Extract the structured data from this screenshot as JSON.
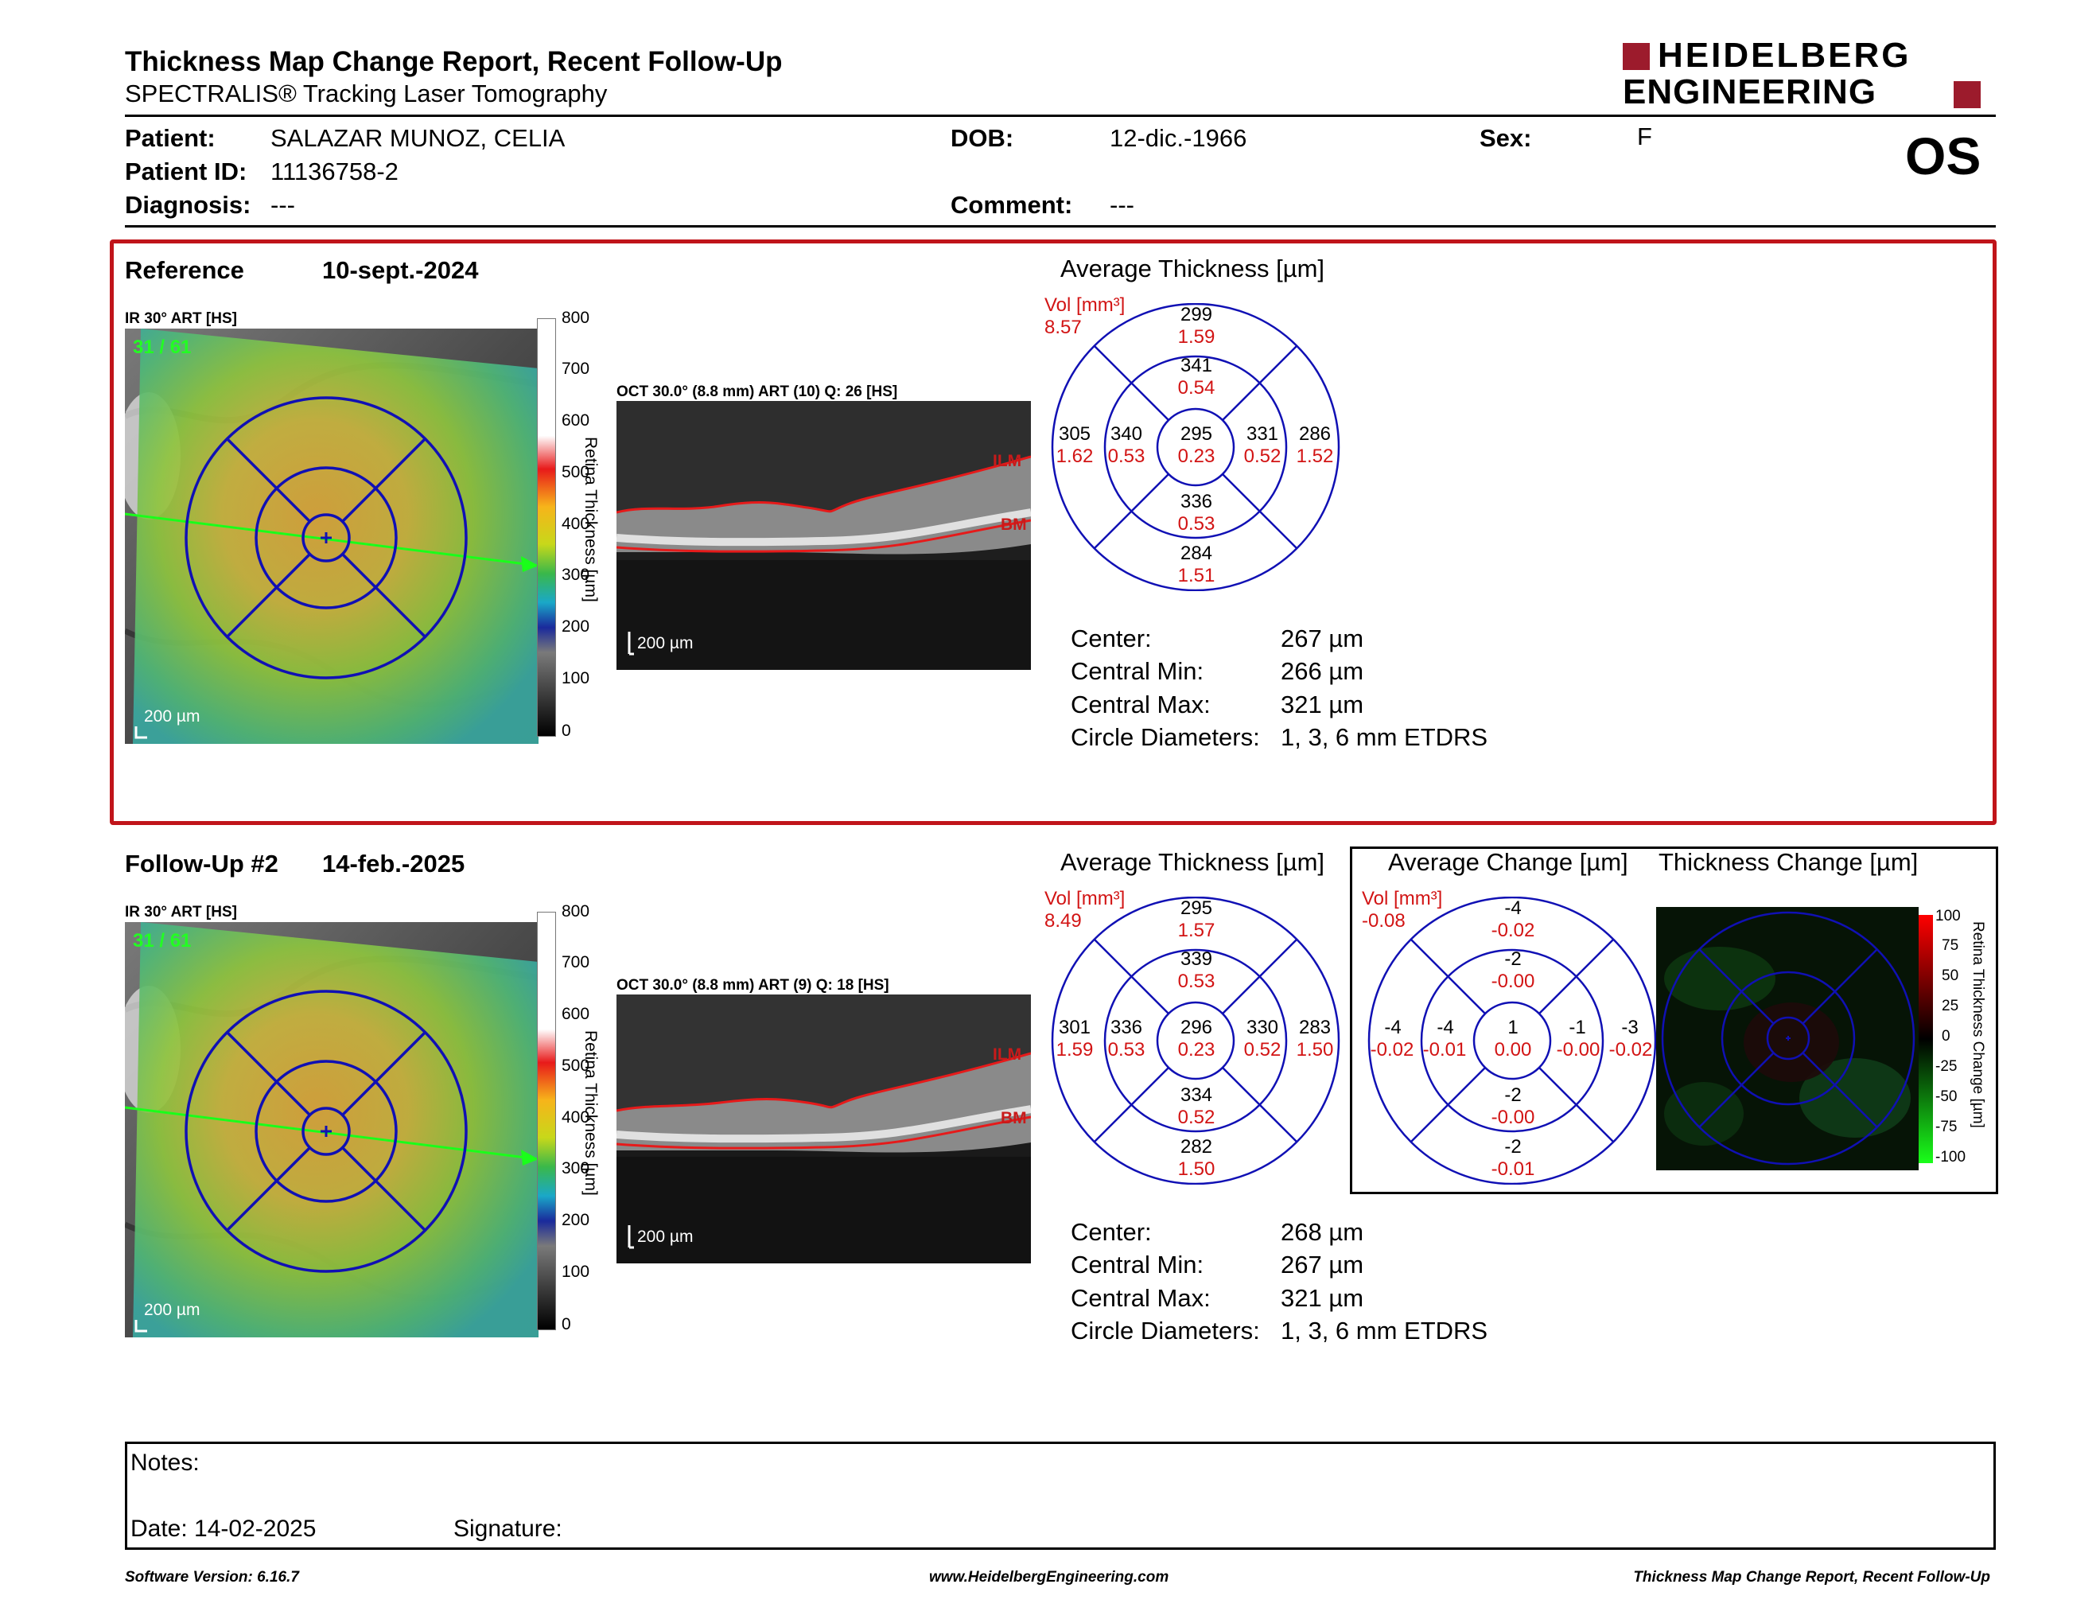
{
  "header": {
    "title": "Thickness Map Change Report, Recent Follow-Up",
    "subtitle": "SPECTRALIS® Tracking Laser Tomography",
    "logo_line1": "HEIDELBERG",
    "logo_line2": "ENGINEERING",
    "eye": "OS"
  },
  "patient": {
    "patient_label": "Patient:",
    "patient_value": "SALAZAR MUNOZ, CELIA",
    "id_label": "Patient ID:",
    "id_value": "11136758-2",
    "diagnosis_label": "Diagnosis:",
    "diagnosis_value": "---",
    "dob_label": "DOB:",
    "dob_value": "12-dic.-1966",
    "comment_label": "Comment:",
    "comment_value": "---",
    "sex_label": "Sex:",
    "sex_value": "F"
  },
  "reference": {
    "label": "Reference",
    "date": "10-sept.-2024",
    "ir_caption": "IR 30° ART [HS]",
    "ir_overlay": "31 / 61",
    "oct_caption": "OCT 30.0° (8.8 mm) ART (10) Q: 26 [HS]",
    "scale_bar": "200 µm",
    "avg_title": "Average Thickness [µm]",
    "vol_label": "Vol [mm³]",
    "vol_value": "8.57",
    "grid": {
      "outer_top": "299",
      "outer_top_v": "1.59",
      "inner_top": "341",
      "inner_top_v": "0.54",
      "outer_left": "305",
      "outer_left_v": "1.62",
      "inner_left": "340",
      "inner_left_v": "0.53",
      "center": "295",
      "center_v": "0.23",
      "inner_right": "331",
      "inner_right_v": "0.52",
      "outer_right": "286",
      "outer_right_v": "1.52",
      "inner_bottom": "336",
      "inner_bottom_v": "0.53",
      "outer_bottom": "284",
      "outer_bottom_v": "1.51"
    },
    "stats": [
      {
        "label": "Center:",
        "value": "267 µm"
      },
      {
        "label": "Central Min:",
        "value": "266 µm"
      },
      {
        "label": "Central Max:",
        "value": "321 µm"
      },
      {
        "label": "Circle Diameters:",
        "value": "1, 3, 6 mm ETDRS"
      }
    ]
  },
  "followup": {
    "label": "Follow-Up #2",
    "date": "14-feb.-2025",
    "ir_caption": "IR 30° ART [HS]",
    "ir_overlay": "31 / 61",
    "oct_caption": "OCT 30.0° (8.8 mm) ART (9) Q: 18 [HS]",
    "scale_bar": "200 µm",
    "avg_title": "Average Thickness [µm]",
    "vol_label": "Vol [mm³]",
    "vol_value": "8.49",
    "grid": {
      "outer_top": "295",
      "outer_top_v": "1.57",
      "inner_top": "339",
      "inner_top_v": "0.53",
      "outer_left": "301",
      "outer_left_v": "1.59",
      "inner_left": "336",
      "inner_left_v": "0.53",
      "center": "296",
      "center_v": "0.23",
      "inner_right": "330",
      "inner_right_v": "0.52",
      "outer_right": "283",
      "outer_right_v": "1.50",
      "inner_bottom": "334",
      "inner_bottom_v": "0.52",
      "outer_bottom": "282",
      "outer_bottom_v": "1.50"
    },
    "stats": [
      {
        "label": "Center:",
        "value": "268 µm"
      },
      {
        "label": "Central Min:",
        "value": "267 µm"
      },
      {
        "label": "Central Max:",
        "value": "321 µm"
      },
      {
        "label": "Circle Diameters:",
        "value": "1, 3, 6 mm ETDRS"
      }
    ],
    "change_title": "Average Change [µm]",
    "change_vol_label": "Vol [mm³]",
    "change_vol_value": "-0.08",
    "change_grid": {
      "outer_top": "-4",
      "outer_top_v": "-0.02",
      "inner_top": "-2",
      "inner_top_v": "-0.00",
      "outer_left": "-4",
      "outer_left_v": "-0.02",
      "inner_left": "-4",
      "inner_left_v": "-0.01",
      "center": "1",
      "center_v": "0.00",
      "inner_right": "-1",
      "inner_right_v": "-0.00",
      "outer_right": "-3",
      "outer_right_v": "-0.02",
      "inner_bottom": "-2",
      "inner_bottom_v": "-0.00",
      "outer_bottom": "-2",
      "outer_bottom_v": "-0.01"
    },
    "thick_change_title": "Thickness Change [µm]",
    "change_scale_title": "Retina Thickness Change [µm]",
    "change_scale": [
      "100",
      "75",
      "50",
      "25",
      "0",
      "-25",
      "-50",
      "-75",
      "-100"
    ]
  },
  "thickness_scale": {
    "title": "Retina Thickness [µm]",
    "ticks": [
      "800",
      "700",
      "600",
      "500",
      "400",
      "300",
      "200",
      "100",
      "0"
    ]
  },
  "oct_labels": {
    "ilm": "ILM",
    "bm": "BM"
  },
  "notes": {
    "notes_label": "Notes:",
    "date_label": "Date: 14-02-2025",
    "signature_label": "Signature:"
  },
  "footer": {
    "left": "Software Version: 6.16.7",
    "center": "www.HeidelbergEngineering.com",
    "right": "Thickness Map Change Report, Recent Follow-Up"
  },
  "colors": {
    "accent_red": "#c0141a",
    "grid_blue": "#1010b4",
    "vol_red": "#d21414",
    "logo_red": "#9c1b2c"
  }
}
